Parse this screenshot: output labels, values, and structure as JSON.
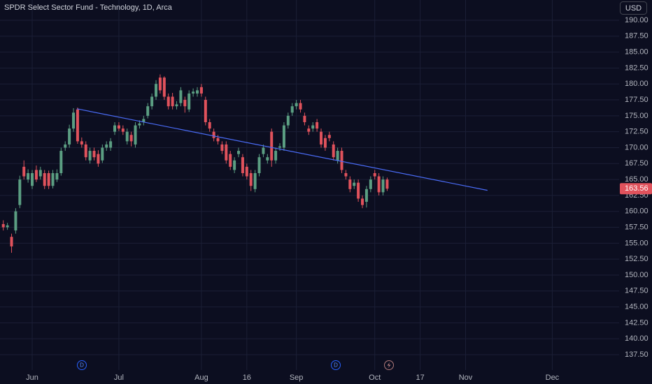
{
  "chart_data": {
    "type": "candlestick",
    "title": "SPDR Select Sector Fund - Technology, 1D, Arca",
    "currency": "USD",
    "events": [
      "D",
      "D"
    ],
    "up_color": "#5b9e82",
    "down_color": "#e0525c",
    "grid": true,
    "xlim": [
      -7.8,
      142.2
    ],
    "xticks": [
      {
        "value": 0,
        "label": "Jun"
      },
      {
        "value": 21,
        "label": "Jul"
      },
      {
        "value": 41,
        "label": "Aug"
      },
      {
        "value": 52,
        "label": "16"
      },
      {
        "value": 64,
        "label": "Sep"
      },
      {
        "value": 83,
        "label": "Oct"
      },
      {
        "value": 94,
        "label": "17"
      },
      {
        "value": 105,
        "label": "Nov"
      },
      {
        "value": 126,
        "label": "Dec"
      }
    ],
    "ylim": [
      135.09,
      193.18
    ],
    "yticks": [
      {
        "value": 137.5,
        "label": "137.50"
      },
      {
        "value": 140,
        "label": "140.00"
      },
      {
        "value": 142.5,
        "label": "142.50"
      },
      {
        "value": 145,
        "label": "145.00"
      },
      {
        "value": 147.5,
        "label": "147.50"
      },
      {
        "value": 150,
        "label": "150.00"
      },
      {
        "value": 152.5,
        "label": "152.50"
      },
      {
        "value": 155,
        "label": "155.00"
      },
      {
        "value": 157.5,
        "label": "157.50"
      },
      {
        "value": 160,
        "label": "160.00"
      },
      {
        "value": 162.5,
        "label": "162.50"
      },
      {
        "value": 165,
        "label": "165.00"
      },
      {
        "value": 167.5,
        "label": "167.50"
      },
      {
        "value": 170,
        "label": "170.00"
      },
      {
        "value": 172.5,
        "label": "172.50"
      },
      {
        "value": 175,
        "label": "175.00"
      },
      {
        "value": 177.5,
        "label": "177.50"
      },
      {
        "value": 180,
        "label": "180.00"
      },
      {
        "value": 182.5,
        "label": "182.50"
      },
      {
        "value": 185,
        "label": "185.00"
      },
      {
        "value": 187.5,
        "label": "187.50"
      },
      {
        "value": 190,
        "label": "190.00"
      }
    ],
    "x": [
      -7,
      -6,
      -5,
      -4,
      -3,
      -2,
      -1,
      0,
      1,
      2,
      3,
      4,
      5,
      6,
      7,
      8,
      9,
      10,
      11,
      12,
      13,
      14,
      15,
      16,
      17,
      18,
      19,
      20,
      21,
      22,
      23,
      24,
      25,
      26,
      27,
      28,
      29,
      30,
      31,
      32,
      33,
      34,
      35,
      36,
      37,
      38,
      39,
      40,
      41,
      42,
      43,
      44,
      45,
      46,
      47,
      48,
      49,
      50,
      51,
      52,
      53,
      54,
      55,
      56,
      57,
      58,
      59,
      60,
      61,
      62,
      63,
      64,
      65,
      66,
      67,
      68,
      69,
      70,
      71,
      72,
      73,
      74,
      75,
      76,
      77,
      78,
      79,
      80,
      81,
      82,
      83,
      84,
      85,
      86
    ],
    "open": [
      158,
      157.5,
      156,
      157,
      161,
      167,
      165,
      164,
      166.5,
      165.5,
      166,
      166,
      164,
      165,
      166,
      170,
      170.5,
      173,
      176,
      171,
      170.5,
      168,
      169.5,
      169,
      168,
      170,
      170,
      172.5,
      173.5,
      173,
      171,
      172,
      170.5,
      173.5,
      174,
      175,
      176.5,
      178,
      181,
      181,
      178,
      178,
      176.5,
      177,
      177.5,
      176,
      178.5,
      178.5,
      179.5,
      177.5,
      174,
      172.5,
      171.5,
      170.5,
      170.5,
      169,
      166.5,
      169,
      168.5,
      167,
      166,
      163.5,
      166,
      169,
      168,
      172.5,
      168,
      170,
      170,
      173.5,
      175.5,
      176.5,
      177,
      175,
      173,
      173,
      174,
      172.5,
      171.5,
      172,
      170.5,
      168,
      169.5,
      166,
      165,
      164,
      164.5,
      162,
      161.5,
      163.5,
      166,
      165.5,
      163,
      165
    ],
    "high": [
      158.6,
      158.2,
      156.5,
      160.5,
      165.6,
      168,
      166.6,
      166.5,
      167.2,
      167,
      166.5,
      166.4,
      166.5,
      166.6,
      170,
      171,
      173.6,
      176.2,
      176.3,
      171.6,
      171,
      170,
      170,
      169.6,
      170.5,
      171,
      171.5,
      174,
      174,
      173.5,
      173,
      172.5,
      174,
      174.3,
      175,
      177,
      178.5,
      180.6,
      181.5,
      181.2,
      178.5,
      178.6,
      177.3,
      179.5,
      178,
      179,
      179.3,
      179.5,
      180,
      178,
      174.5,
      173,
      172,
      171,
      171,
      169.5,
      168.5,
      170,
      169,
      167.5,
      166.5,
      166.5,
      169,
      170.5,
      169,
      173,
      170,
      170.7,
      174,
      175.5,
      177,
      177.5,
      177.5,
      175.5,
      173.5,
      174,
      174.5,
      173,
      172,
      172.5,
      171,
      170,
      170,
      166.5,
      165.5,
      165,
      165,
      162.5,
      164,
      165.5,
      166.5,
      166,
      165.5,
      165.3
    ],
    "low": [
      157,
      157.1,
      153.5,
      156.5,
      160.5,
      165,
      164.5,
      163.5,
      164.6,
      165,
      163.5,
      163.5,
      163.6,
      164.6,
      165.6,
      169.5,
      170,
      172.5,
      170.6,
      170,
      168,
      167.5,
      168,
      167,
      167.6,
      169.5,
      169.5,
      172,
      172.6,
      172,
      170.5,
      170.2,
      170,
      173,
      173.5,
      174.6,
      176,
      177.5,
      178.5,
      177.5,
      176,
      176,
      176,
      176.5,
      175.5,
      175.6,
      178,
      178,
      178,
      173.5,
      172.5,
      171,
      170.5,
      169,
      167.5,
      166.5,
      166,
      168.5,
      165.5,
      165,
      163.2,
      163,
      165.5,
      168.5,
      167.5,
      167,
      167.5,
      169.5,
      169.5,
      173,
      175,
      176,
      175.5,
      173.5,
      172,
      172.5,
      172.5,
      170,
      169.5,
      171,
      168,
      167.5,
      166,
      165,
      163,
      163.5,
      161.5,
      160.5,
      160.6,
      163,
      165,
      162.5,
      162.5,
      163.2
    ],
    "close": [
      157.5,
      157.8,
      154.5,
      160,
      165,
      165.5,
      166,
      166,
      165,
      166.5,
      164,
      164,
      166,
      166,
      169.5,
      170.5,
      173,
      175.5,
      171,
      170.5,
      168.5,
      169.5,
      168.5,
      167.5,
      170,
      170.5,
      171,
      173.5,
      173,
      172.5,
      172.5,
      171,
      173.5,
      173.8,
      174.5,
      176.5,
      178,
      180,
      179,
      178,
      176.5,
      176.5,
      176.8,
      179,
      176.5,
      178.5,
      178.8,
      179,
      178.5,
      174,
      173,
      171.5,
      171,
      169.5,
      168,
      167,
      168,
      169.5,
      166,
      165.5,
      164,
      166,
      168.5,
      170,
      168.5,
      168,
      169.5,
      170.2,
      173.5,
      175,
      176.5,
      177,
      176,
      174,
      172.5,
      173.5,
      173,
      170.5,
      170,
      171.5,
      168.5,
      169.5,
      166.5,
      165.5,
      163.5,
      164.5,
      162,
      161,
      163.5,
      165,
      165.5,
      163,
      165,
      163.56
    ],
    "trendline": {
      "x": [
        10.85,
        110.3
      ],
      "y": [
        176.1,
        163.3
      ],
      "color": "#4a6cf7"
    }
  }
}
